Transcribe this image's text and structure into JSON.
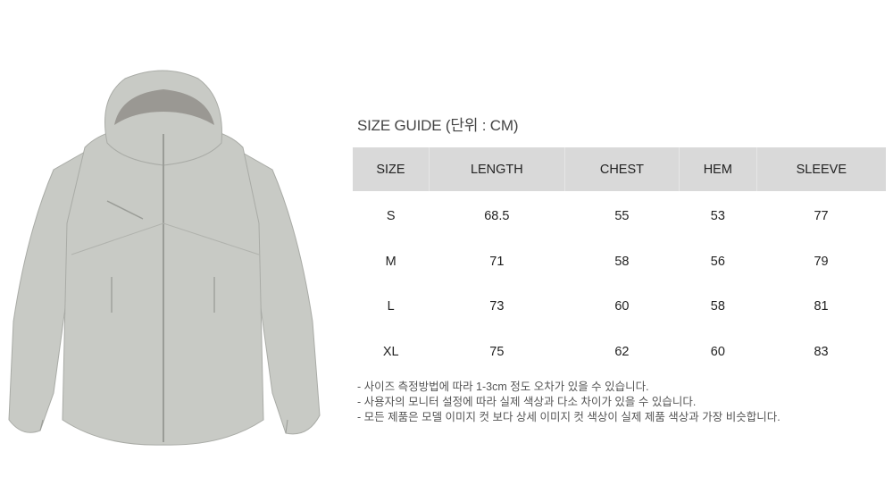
{
  "title": "SIZE GUIDE (단위 : CM)",
  "table": {
    "headers": [
      "SIZE",
      "LENGTH",
      "CHEST",
      "HEM",
      "SLEEVE"
    ],
    "rows": [
      [
        "S",
        "68.5",
        "55",
        "53",
        "77"
      ],
      [
        "M",
        "71",
        "58",
        "56",
        "79"
      ],
      [
        "L",
        "73",
        "60",
        "58",
        "81"
      ],
      [
        "XL",
        "75",
        "62",
        "60",
        "83"
      ]
    ]
  },
  "notes": [
    "- 사이즈 측정방법에 따라 1-3cm 정도 오차가 있을 수 있습니다.",
    "- 사용자의 모니터 설정에 따라 실제 색상과 다소 차이가 있을 수 있습니다.",
    "- 모든 제품은 모델 이미지 컷 보다 상세 이미지 컷 색상이 실제 제품 색상과 가장 비슷합니다."
  ],
  "colors": {
    "jacket": "#c9cbc6",
    "header_bg": "#d9d9d9"
  }
}
